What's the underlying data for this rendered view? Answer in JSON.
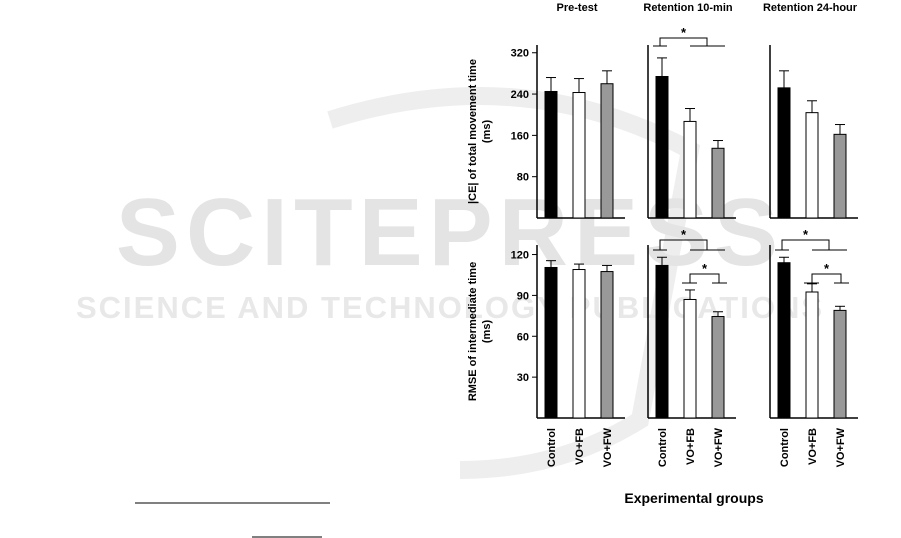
{
  "figure": {
    "x_label": "Experimental groups",
    "watermark": [
      "SCITEPRESS",
      "SCIENCE AND TECHNOLOGY PUBLICATIONS"
    ]
  },
  "chart_data": [
    {
      "type": "bar",
      "title": "Pre-test",
      "ylabel": [
        "|CE| of total movement time",
        "(ms)"
      ],
      "categories": [
        null,
        null,
        null
      ],
      "values": [
        245,
        243,
        260
      ],
      "errors": [
        27,
        27,
        25
      ],
      "colors": [
        "#000000",
        "#ffffff",
        "#999999"
      ],
      "ylim": [
        0,
        335
      ],
      "yticks": [
        80,
        160,
        240,
        320
      ]
    },
    {
      "type": "bar",
      "title": "Retention 10-min",
      "categories": [
        null,
        null,
        null
      ],
      "values": [
        274,
        187,
        135
      ],
      "errors": [
        36,
        25,
        15
      ],
      "colors": [
        "#000000",
        "#ffffff",
        "#999999"
      ],
      "ylim": [
        0,
        335
      ],
      "annotations": [
        "*"
      ]
    },
    {
      "type": "bar",
      "title": "Retention 24-hour",
      "categories": [
        null,
        null,
        null
      ],
      "values": [
        252,
        204,
        162
      ],
      "errors": [
        33,
        23,
        19
      ],
      "colors": [
        "#000000",
        "#ffffff",
        "#999999"
      ],
      "ylim": [
        0,
        335
      ]
    },
    {
      "type": "bar",
      "ylabel": [
        "RMSE of intermediate time",
        "(ms)"
      ],
      "categories": [
        "Control",
        "VO+FB",
        "VO+FW"
      ],
      "values": [
        110.5,
        109,
        107.5
      ],
      "errors": [
        5,
        4,
        4.5
      ],
      "colors": [
        "#000000",
        "#ffffff",
        "#999999"
      ],
      "ylim": [
        0,
        127
      ],
      "yticks": [
        30,
        60,
        90,
        120
      ]
    },
    {
      "type": "bar",
      "categories": [
        "Control",
        "VO+FB",
        "VO+FW"
      ],
      "values": [
        112,
        87,
        74.5
      ],
      "errors": [
        6,
        7,
        3.5
      ],
      "colors": [
        "#000000",
        "#ffffff",
        "#999999"
      ],
      "ylim": [
        0,
        127
      ],
      "annotations": [
        "*",
        "*"
      ]
    },
    {
      "type": "bar",
      "categories": [
        "Control",
        "VO+FB",
        "VO+FW"
      ],
      "values": [
        114,
        92.5,
        79
      ],
      "errors": [
        4,
        6,
        3
      ],
      "colors": [
        "#000000",
        "#ffffff",
        "#999999"
      ],
      "ylim": [
        0,
        127
      ],
      "annotations": [
        "*",
        "*"
      ]
    }
  ]
}
